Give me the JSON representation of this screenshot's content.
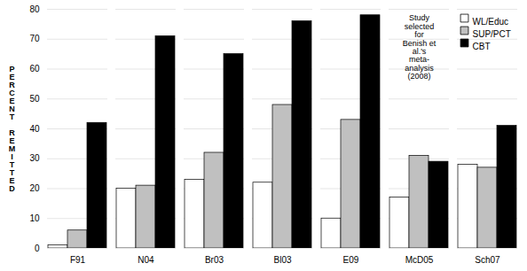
{
  "chart_data": {
    "type": "bar",
    "categories": [
      "F91",
      "N04",
      "Br03",
      "Bl03",
      "E09",
      "McD05",
      "Sch07"
    ],
    "series": [
      {
        "name": "WL/Educ",
        "color": "#ffffff",
        "values": [
          1,
          20,
          23,
          22,
          10,
          17,
          28
        ]
      },
      {
        "name": "SUP/PCT",
        "color": "#c0c0c0",
        "values": [
          6,
          21,
          32,
          48,
          43,
          31,
          27
        ]
      },
      {
        "name": "CBT",
        "color": "#000000",
        "values": [
          42,
          71,
          65,
          76,
          78,
          29,
          41
        ]
      }
    ],
    "ylabel": "PERCENT REMITTED",
    "annotation": "Study\nselected\nfor\nBenish et\nal.'s\nmeta-\nanalysis\n(2008)",
    "ylim": [
      0,
      80
    ],
    "yticks": [
      0,
      10,
      20,
      30,
      40,
      50,
      60,
      70,
      80
    ],
    "grid": true,
    "legend": "upper right"
  }
}
